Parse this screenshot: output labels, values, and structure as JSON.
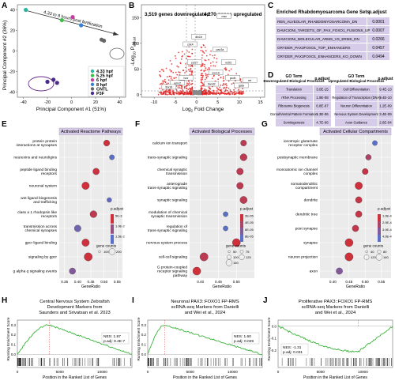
{
  "panel_letters": [
    "A",
    "B",
    "C",
    "D",
    "E",
    "F",
    "G",
    "H",
    "I",
    "J"
  ],
  "panelA": {
    "xlabel": "Principal Component #1 (51%)",
    "ylabel": "Principal Component #2 (36%)",
    "xticks": [
      "-40",
      "-20",
      "0",
      "20",
      "40"
    ],
    "yticks": [
      "40",
      "20",
      "0",
      "-20",
      "-40"
    ],
    "annotation": "4.33 to 8 hours post fertilization",
    "legend": [
      {
        "label": "4.33 hpf",
        "color": "#2bb5a0"
      },
      {
        "label": "5.25 hpf",
        "color": "#3fbf4a"
      },
      {
        "label": "6 hpf",
        "color": "#c63fa0"
      },
      {
        "label": "8 hpf",
        "color": "#3a7fd0"
      },
      {
        "label": "CNTL",
        "color": "#666666"
      },
      {
        "label": "P3F",
        "color": "#4a2b8a"
      }
    ]
  },
  "chart_data": [
    {
      "type": "scatter",
      "panel": "A",
      "xlabel": "Principal Component #1 (51%)",
      "ylabel": "Principal Component #2 (36%)",
      "xlim": [
        -45,
        45
      ],
      "ylim": [
        -45,
        45
      ],
      "series": [
        {
          "name": "4.33 hpf",
          "points": [
            [
              -38,
              40
            ]
          ]
        },
        {
          "name": "5.25 hpf",
          "points": [
            [
              -8,
              30
            ]
          ]
        },
        {
          "name": "6 hpf",
          "points": [
            [
              1,
              33
            ]
          ]
        },
        {
          "name": "8 hpf",
          "points": [
            [
              8,
              25
            ]
          ]
        },
        {
          "name": "CNTL",
          "points": [
            [
              25,
              11
            ],
            [
              27,
              10
            ]
          ]
        },
        {
          "name": "P3F",
          "points": [
            [
              -20,
              -30
            ],
            [
              -15,
              -28
            ],
            [
              -12,
              -31
            ]
          ]
        }
      ]
    },
    {
      "type": "scatter",
      "panel": "B",
      "xlabel": "Log2 Fold Change",
      "ylabel": "-Log10 Padjust",
      "xticks": [
        "-10",
        "-5",
        "0",
        "5",
        "10",
        "15"
      ],
      "yticks": [
        "0",
        "50",
        "100",
        "150"
      ],
      "down_label": "3,519 genes downregulated",
      "up_label": "4,270 genes upregulated",
      "gene_labels": [
        "dlx1b",
        "cdx4",
        "pax3a",
        "nr2f2",
        "col27",
        "sox10",
        "pcdh",
        "hox",
        "emx2",
        "hand2",
        "gata",
        "tbx16",
        "ret",
        "msx"
      ]
    },
    {
      "type": "dot",
      "panel": "E",
      "title": "Activated Reactome Pathways",
      "xlabel": "GeneRatio",
      "xticks": [
        "0.35",
        "0.40",
        "0.45",
        "0.50",
        "0.55"
      ],
      "xlim": [
        0.33,
        0.57
      ],
      "categories": [
        "protein protein interactions at synapses",
        "neurexins and neuroligins",
        "peptide ligand binding receptors",
        "neuronal system",
        "wnt ligand biogenesis and trafficking",
        "class a 1 rhodopsin like receptors",
        "transmission across chemical synapses",
        "gpcr ligand binding",
        "signaling by gpcr",
        "g alpha q signaling events"
      ],
      "values": [
        0.51,
        0.53,
        0.47,
        0.43,
        0.52,
        0.46,
        0.4,
        0.43,
        0.44,
        0.38
      ],
      "counts": [
        80,
        40,
        100,
        150,
        30,
        120,
        110,
        150,
        200,
        90
      ],
      "padj": [
        0.0012,
        0.06,
        0.004,
        0.0008,
        0.055,
        0.01,
        0.05,
        0.002,
        0.002,
        0.04
      ],
      "size_legend_title": "gene counts",
      "size_legend": [
        "100",
        "200"
      ],
      "color_legend_title": "p.adjust",
      "color_legend": [
        "5E-3",
        "1.0E-2",
        "1.5E-2"
      ]
    },
    {
      "type": "dot",
      "panel": "F",
      "title": "Activated Biological Processes",
      "xlabel": "GeneRatio",
      "xticks": [
        "0.40",
        "0.45",
        "0.50"
      ],
      "xlim": [
        0.37,
        0.55
      ],
      "categories": [
        "calcium ion transport",
        "trans-synaptic signaling",
        "chemical synaptic transmission",
        "anterograde trans-synaptic signaling",
        "synaptic signaling",
        "modulation of chemical synaptic transmission",
        "regulation of trans-synaptic signaling",
        "nervous system process",
        "cell-cell signaling",
        "G protein-coupled receptor signaling pathway"
      ],
      "values": [
        0.52,
        0.52,
        0.51,
        0.51,
        0.52,
        0.47,
        0.47,
        0.5,
        0.41,
        0.39
      ],
      "counts": [
        60,
        100,
        90,
        90,
        110,
        30,
        30,
        150,
        160,
        150
      ],
      "padj": [
        3e-05,
        3e-05,
        3e-05,
        3e-05,
        3e-05,
        8e-05,
        8e-05,
        2e-05,
        3e-05,
        2e-05
      ],
      "size_legend_title": "gene counts",
      "size_legend": [
        "50",
        "75",
        "100",
        "125",
        "150"
      ],
      "color_legend_title": "p.adjust",
      "color_legend": [
        "2E-05",
        "4E-05",
        "6E-05",
        "8E-05"
      ]
    },
    {
      "type": "dot",
      "panel": "G",
      "title": "Activated Cellular Compartments",
      "xlabel": "GeneRatio",
      "xticks": [
        "0.40",
        "0.45",
        "0.50",
        "0.55"
      ],
      "xlim": [
        0.36,
        0.58
      ],
      "categories": [
        "ionotropic glutamate receptor complex",
        "postsynaptic membrane",
        "monoatomic ion channel complex",
        "somatodendritic compartment",
        "dendrite",
        "dendritic tree",
        "post synapse",
        "synapse",
        "neuron projection",
        "axon"
      ],
      "values": [
        0.53,
        0.51,
        0.5,
        0.48,
        0.48,
        0.48,
        0.47,
        0.45,
        0.45,
        0.42
      ],
      "counts": [
        30,
        50,
        60,
        120,
        80,
        80,
        80,
        150,
        160,
        80
      ],
      "padj": [
        0.03,
        0.01,
        0.003,
        0.001,
        0.003,
        0.003,
        0.004,
        0.0005,
        0.0008,
        0.02
      ],
      "size_legend_title": "gene counts",
      "size_legend": [
        "40",
        "80",
        "120",
        "160"
      ],
      "color_legend_title": "p.adjust",
      "color_legend": [
        "1.0E-4",
        "2.0E-4",
        "3.0E-4",
        "4.0E-4"
      ]
    },
    {
      "type": "line",
      "panel": "H",
      "title": "Central Nervous System Zebrafish Development Markers from Saunders and Srivatsan et al. 2023",
      "xlabel": "Position in the Ranked List of Genes",
      "ylabel": "Running Enrichment Score",
      "xticks": [
        "0",
        "5000",
        "10000"
      ],
      "yticks": [
        "0.0",
        "0.1",
        "0.2",
        "0.3"
      ],
      "nes": "NES: 1.87",
      "padj": "p.adj: 9.4E-7"
    },
    {
      "type": "line",
      "panel": "I",
      "title": "Neuronal PAX3::FOXO1 FP-RMS scRNA-seq Markers from Danielli and Wei et al., 2024",
      "xlabel": "Position in the Ranked List of Genes",
      "ylabel": "Running Enrichment Score",
      "xticks": [
        "0",
        "5000",
        "10000"
      ],
      "yticks": [
        "0.0",
        "0.1",
        "0.2",
        "0.3"
      ],
      "nes": "NES: 1.60",
      "padj": "p.adj: 0.029"
    },
    {
      "type": "line",
      "panel": "J",
      "title": "Proliferative PAX3::FOXO1 FP-RMS scRNA-seq Markers from Danielli and Wei et al., 2024",
      "xlabel": "Position in the Ranked List of Genes",
      "ylabel": "Running Enrichment Score",
      "xticks": [
        "0",
        "5000",
        "10000"
      ],
      "yticks": [
        "0.0",
        "-0.1",
        "-0.2"
      ],
      "nes": "NES: -1.31",
      "padj": "p.adj: 0.031"
    }
  ],
  "panelC": {
    "title": "Enriched Rhabdomyosarcoma Gene Sets",
    "col_header": "p.adjust",
    "rows": [
      {
        "name": "REN_ALVEOLAR_RHABDOMYOSARCOMA_DN",
        "p": "0.0001"
      },
      {
        "name": "DAVICIONI_TARGETS_OF_PAX_FOXO1_FUSIONS_UP",
        "p": "0.0007"
      },
      {
        "name": "DAVICIONI_MOLECULAR_ARMS_VS_ERMS_DN",
        "p": "0.0266"
      },
      {
        "name": "GRYDER_PAX3FOXO1_TOP_ENHANCERS",
        "p": "0.0457"
      },
      {
        "name": "GRYDER_PAX3FOXO1_ENHANCERS_KO_DOWN",
        "p": "0.0494"
      }
    ]
  },
  "panelD": {
    "left_header_term": "GO Term",
    "left_header_sub": "Downregulated Biological Processes",
    "left_header_p": "p.adjust",
    "right_header_term": "GO Term",
    "right_header_sub": "Upregulated Biological Processes",
    "right_header_p": "p.adjust",
    "left_rows": [
      {
        "name": "Translation",
        "p": "3.0E-15"
      },
      {
        "name": "rRNA Processing",
        "p": "1.9E-08"
      },
      {
        "name": "Ribosome Biogenesis",
        "p": "6.8E-07"
      },
      {
        "name": "Dorsal/Ventral Pattern Formation",
        "p": "1.3E-06"
      },
      {
        "name": "Somitogenesis",
        "p": "4.7E-06"
      }
    ],
    "right_rows": [
      {
        "name": "Cell Differentiation",
        "p": "9.4E-13"
      },
      {
        "name": "Regulation of Transcription (DNA)",
        "p": "9.4E-10"
      },
      {
        "name": "Neuron Differentiation",
        "p": "1.2E-09"
      },
      {
        "name": "Nervous System Development",
        "p": "3.4E-09"
      },
      {
        "name": "Axon Guidance",
        "p": "2.6E-04"
      }
    ]
  }
}
